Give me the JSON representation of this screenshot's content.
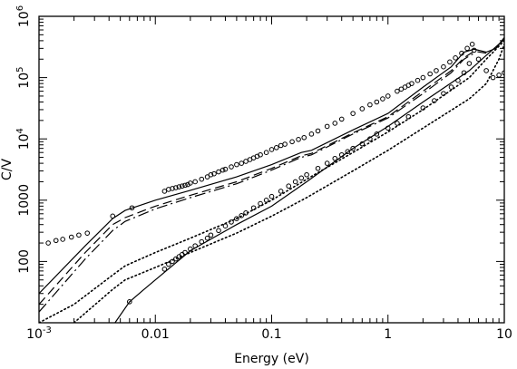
{
  "chart_data": {
    "type": "scatter",
    "xlabel": "Energy (eV)",
    "ylabel": "C/V",
    "xscale": "log",
    "yscale": "log",
    "xlim": [
      0.001,
      10
    ],
    "ylim": [
      10,
      1000000
    ],
    "grid": false,
    "x_ticks": [
      {
        "value": 0.001,
        "label": "10",
        "exp": "-3"
      },
      {
        "value": 0.01,
        "label": "0.01",
        "exp": ""
      },
      {
        "value": 0.1,
        "label": "0.1",
        "exp": ""
      },
      {
        "value": 1,
        "label": "1",
        "exp": ""
      },
      {
        "value": 10,
        "label": "10",
        "exp": ""
      }
    ],
    "y_ticks": [
      {
        "value": 100,
        "label": "100",
        "exp": ""
      },
      {
        "value": 1000,
        "label": "1000",
        "exp": ""
      },
      {
        "value": 10000,
        "label": "10",
        "exp": "4"
      },
      {
        "value": 100000,
        "label": "10",
        "exp": "5"
      },
      {
        "value": 1000000,
        "label": "10",
        "exp": "6"
      }
    ],
    "series": [
      {
        "style": "solid",
        "x": [
          0.001,
          0.0025,
          0.0043,
          0.0055,
          0.01,
          0.02,
          0.05,
          0.1,
          0.18,
          0.22,
          0.5,
          1,
          2,
          3.5,
          4.5,
          5.5,
          7,
          8.5,
          10
        ],
        "y": [
          30,
          180,
          500,
          680,
          1000,
          1450,
          2400,
          3800,
          6000,
          6500,
          14000,
          26000,
          70000,
          150000,
          260000,
          290000,
          260000,
          300000,
          450000
        ]
      },
      {
        "style": "dashed",
        "x": [
          0.001,
          0.0025,
          0.0043,
          0.0055,
          0.01,
          0.02,
          0.05,
          0.1,
          0.18,
          0.22,
          0.5,
          1,
          2,
          3.5,
          4.5,
          5.5,
          7
        ],
        "y": [
          20,
          140,
          400,
          520,
          800,
          1200,
          2000,
          3300,
          5300,
          5800,
          12500,
          23000,
          60000,
          130000,
          210000,
          270000,
          250000
        ]
      },
      {
        "style": "dash-dot",
        "x": [
          0.001,
          0.0025,
          0.0043,
          0.0055,
          0.01,
          0.02,
          0.05,
          0.1,
          0.18,
          0.22,
          0.5,
          1,
          2,
          3.5,
          4.5,
          5.5
        ],
        "y": [
          15,
          110,
          320,
          450,
          720,
          1100,
          1850,
          3100,
          5000,
          5500,
          12000,
          22000,
          55000,
          120000,
          200000,
          250000
        ]
      },
      {
        "style": "dotted",
        "x": [
          0.001,
          0.002,
          0.0043,
          0.0055,
          0.01,
          0.02,
          0.05,
          0.1,
          0.2,
          0.5,
          1,
          2,
          5,
          7,
          10
        ],
        "y": [
          10,
          20,
          60,
          85,
          140,
          240,
          500,
          1000,
          2200,
          6000,
          13000,
          30000,
          100000,
          200000,
          400000
        ]
      },
      {
        "style": "dotted",
        "x": [
          0.002,
          0.0043,
          0.0055,
          0.01,
          0.02,
          0.05,
          0.1,
          0.2,
          0.5,
          1,
          2,
          5,
          7,
          9,
          10
        ],
        "y": [
          10,
          35,
          50,
          80,
          140,
          290,
          550,
          1100,
          3000,
          6500,
          15000,
          45000,
          80000,
          200000,
          350000
        ]
      },
      {
        "style": "solid",
        "x": [
          0.0045,
          0.006,
          0.008,
          0.01,
          0.02,
          0.05,
          0.1,
          0.2,
          0.5,
          1,
          2,
          5,
          7,
          10
        ],
        "y": [
          10,
          22,
          35,
          50,
          150,
          400,
          800,
          2000,
          7000,
          16000,
          40000,
          130000,
          230000,
          420000
        ]
      },
      {
        "style": "markers",
        "marker": "circle-open",
        "x": [
          0.0012,
          0.0014,
          0.0016,
          0.0019,
          0.0022,
          0.0026,
          0.0043,
          0.0063,
          0.012,
          0.013,
          0.014,
          0.015,
          0.016,
          0.017,
          0.018,
          0.019,
          0.02,
          0.022,
          0.025,
          0.028,
          0.03,
          0.032,
          0.035,
          0.038,
          0.04,
          0.045,
          0.05,
          0.055,
          0.06,
          0.065,
          0.07,
          0.075,
          0.08,
          0.09,
          0.1,
          0.11,
          0.12,
          0.13,
          0.15,
          0.17,
          0.19,
          0.22,
          0.25,
          0.3,
          0.35,
          0.4,
          0.5,
          0.6,
          0.7,
          0.8,
          0.9,
          1,
          1.2,
          1.3,
          1.4,
          1.5,
          1.6,
          1.8,
          2,
          2.3,
          2.6,
          3,
          3.4,
          3.8,
          4.3,
          4.8,
          5.3,
          6,
          7,
          8,
          9,
          10
        ],
        "y": [
          200,
          220,
          230,
          250,
          270,
          290,
          550,
          750,
          1400,
          1500,
          1550,
          1600,
          1650,
          1700,
          1750,
          1800,
          1900,
          2000,
          2200,
          2400,
          2600,
          2700,
          2900,
          3100,
          3200,
          3500,
          3800,
          4000,
          4300,
          4600,
          4900,
          5200,
          5500,
          6000,
          6700,
          7200,
          7800,
          8200,
          9000,
          9800,
          10500,
          12000,
          13500,
          16000,
          18000,
          21000,
          26000,
          31000,
          36000,
          40000,
          45000,
          50000,
          60000,
          65000,
          70000,
          75000,
          80000,
          90000,
          100000,
          115000,
          130000,
          150000,
          180000,
          210000,
          250000,
          300000,
          350000,
          200000,
          130000,
          100000,
          110000,
          120000
        ]
      },
      {
        "style": "markers",
        "marker": "circle-open",
        "x": [
          0.006,
          0.012,
          0.013,
          0.014,
          0.015,
          0.016,
          0.017,
          0.018,
          0.02,
          0.022,
          0.025,
          0.028,
          0.03,
          0.035,
          0.04,
          0.045,
          0.05,
          0.055,
          0.06,
          0.07,
          0.08,
          0.09,
          0.1,
          0.12,
          0.14,
          0.16,
          0.18,
          0.2,
          0.25,
          0.3,
          0.35,
          0.4,
          0.45,
          0.5,
          0.6,
          0.7,
          0.8,
          1,
          1.2,
          1.5,
          2,
          2.5,
          3,
          3.5,
          4,
          4.5,
          5,
          5.5
        ],
        "y": [
          22,
          75,
          90,
          100,
          110,
          120,
          130,
          140,
          160,
          180,
          210,
          240,
          270,
          320,
          380,
          440,
          500,
          560,
          620,
          750,
          880,
          1000,
          1150,
          1400,
          1700,
          2000,
          2300,
          2600,
          3300,
          4000,
          4800,
          5500,
          6200,
          7000,
          8300,
          10000,
          12000,
          15000,
          18000,
          23000,
          32000,
          42000,
          55000,
          70000,
          90000,
          120000,
          170000,
          280000
        ]
      }
    ]
  }
}
